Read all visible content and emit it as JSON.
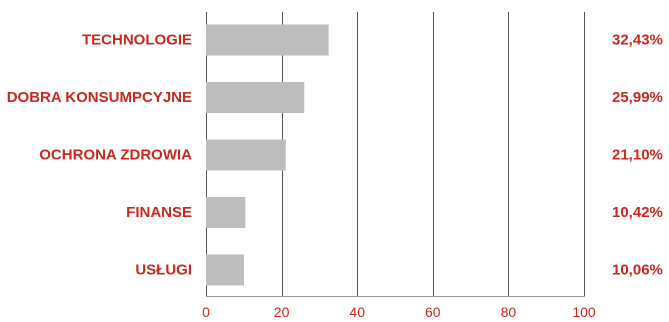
{
  "chart_data": {
    "type": "bar",
    "orientation": "horizontal",
    "categories": [
      "TECHNOLOGIE",
      "DOBRA KONSUMPCYJNE",
      "OCHRONA ZDROWIA",
      "FINANSE",
      "USŁUGI"
    ],
    "values": [
      32.43,
      25.99,
      21.1,
      10.42,
      10.06
    ],
    "value_labels": [
      "32,43%",
      "25,99%",
      "21,10%",
      "10,42%",
      "10,06%"
    ],
    "xlim": [
      0,
      100
    ],
    "x_ticks": [
      0,
      20,
      40,
      60,
      80,
      100
    ],
    "x_tick_labels": [
      "0",
      "20",
      "40",
      "60",
      "80",
      "100"
    ],
    "grid": true,
    "legend": "none",
    "title": "",
    "xlabel": "",
    "ylabel": ""
  },
  "colors": {
    "bar": "#bdbdbd",
    "label": "#c8281e",
    "grid": "#555555",
    "axis": "#9a9a9a"
  }
}
